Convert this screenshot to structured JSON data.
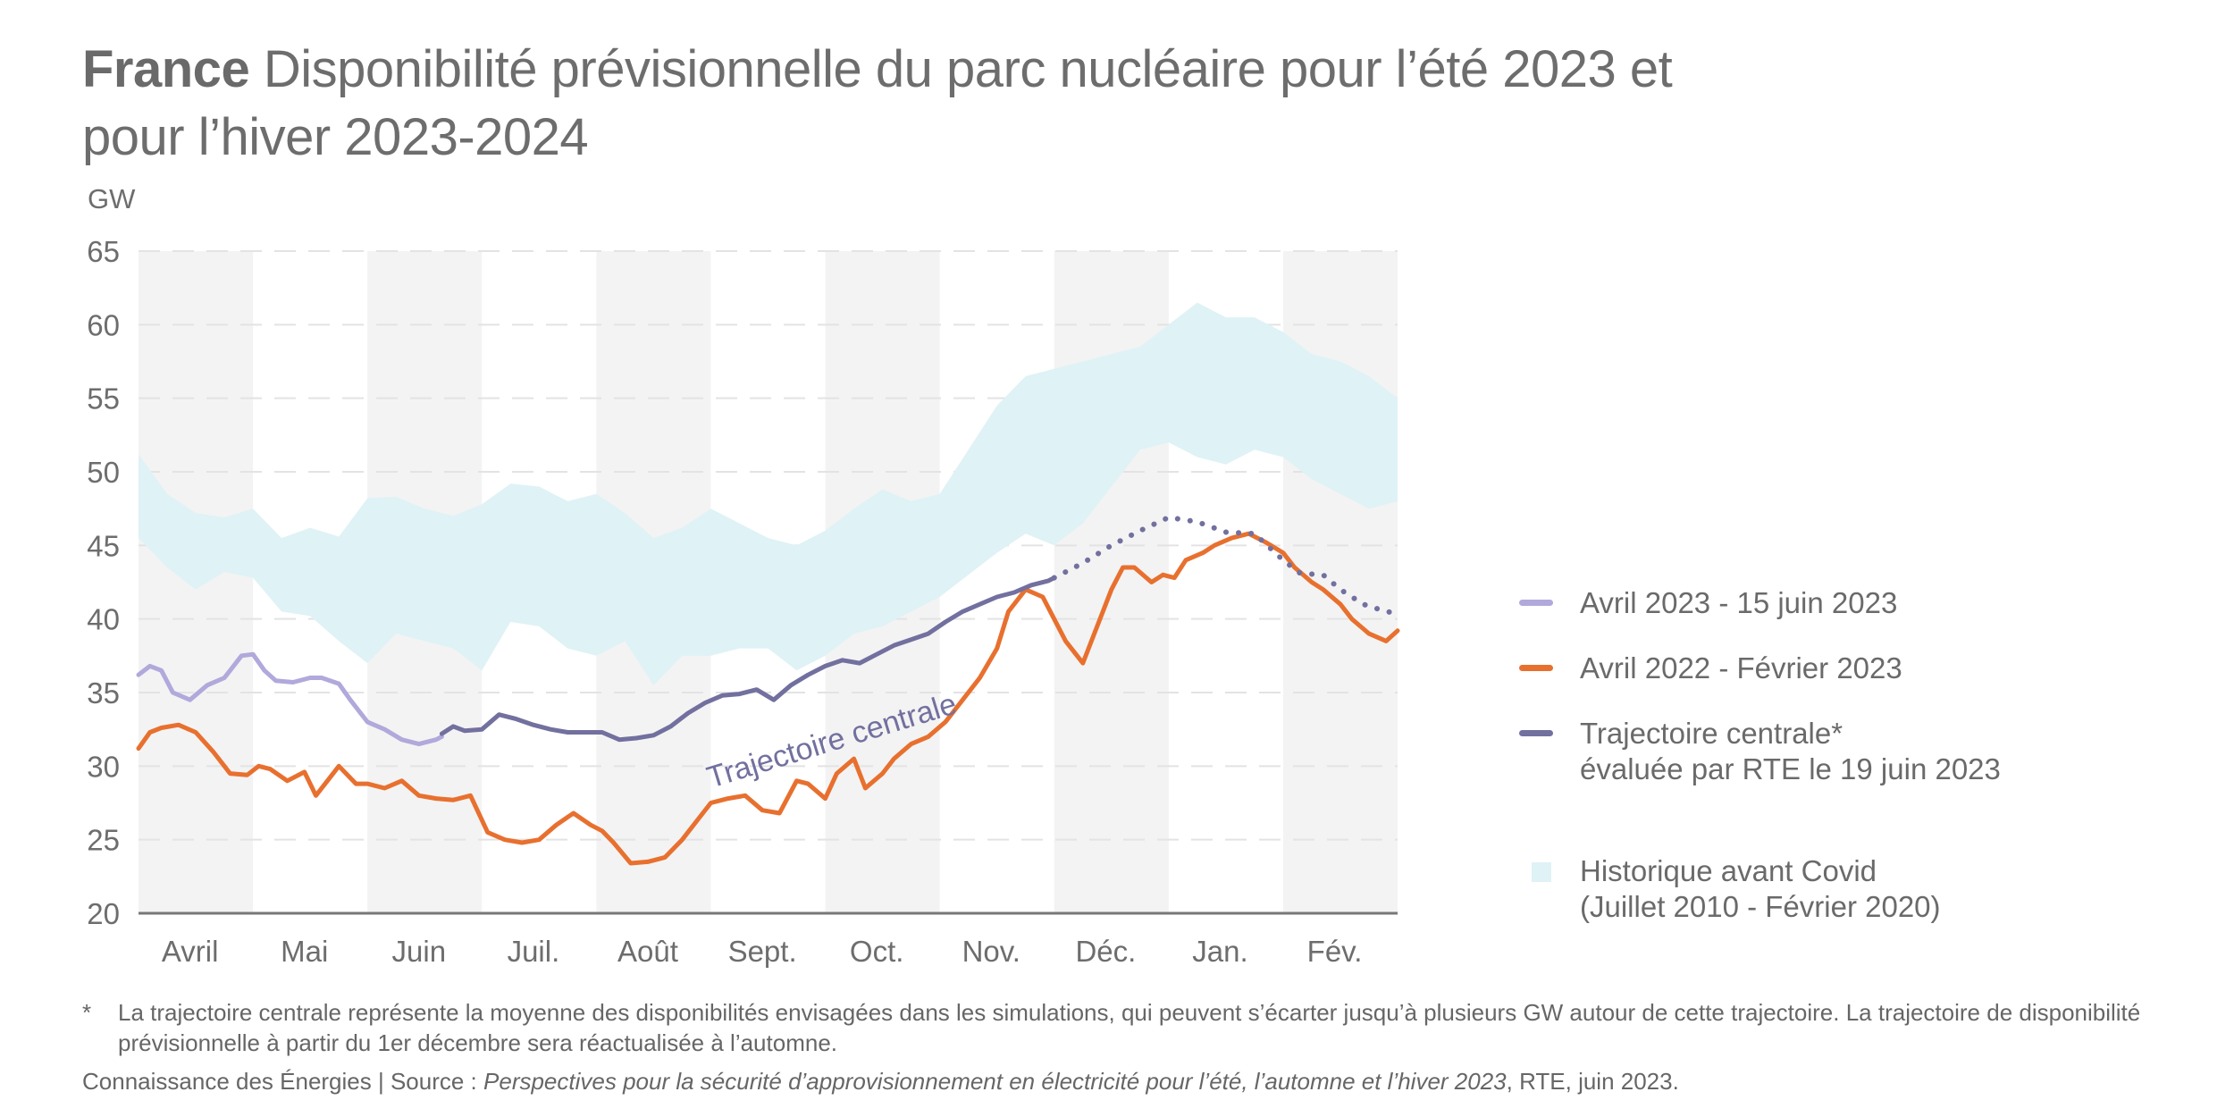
{
  "header": {
    "title_bold": "France",
    "title_rest": "Disponibilité prévisionnelle du parc nucléaire pour l’été 2023 et",
    "title_line2": "pour l’hiver 2023-2024"
  },
  "chart_data": {
    "type": "line",
    "title": "France Disponibilité prévisionnelle du parc nucléaire pour l’été 2023 et pour l’hiver 2023-2024",
    "ylabel": "GW",
    "xlabel": "",
    "ylim": [
      20,
      65
    ],
    "yticks": [
      20,
      25,
      30,
      35,
      40,
      45,
      50,
      55,
      60,
      65
    ],
    "grid": "horizontal dashed",
    "categories": [
      "Avril",
      "Mai",
      "Juin",
      "Juil.",
      "Août",
      "Sept.",
      "Oct.",
      "Nov.",
      "Déc.",
      "Jan.",
      "Fév."
    ],
    "shaded_months": [
      "Avril",
      "Juin",
      "Août",
      "Oct.",
      "Déc.",
      "Fév."
    ],
    "x_unit": "months since start of April (0-11)",
    "band": {
      "name": "Historique avant Covid (Juillet 2010 - Février 2020)",
      "color": "#dff2f6",
      "x": [
        0,
        0.25,
        0.5,
        0.75,
        1,
        1.25,
        1.5,
        1.75,
        2,
        2.25,
        2.5,
        2.75,
        3,
        3.25,
        3.5,
        3.75,
        4,
        4.25,
        4.5,
        4.75,
        5,
        5.25,
        5.5,
        5.75,
        6,
        6.25,
        6.5,
        6.75,
        7,
        7.25,
        7.5,
        7.75,
        8,
        8.25,
        8.5,
        8.75,
        9,
        9.25,
        9.5,
        9.75,
        10,
        10.25,
        10.5,
        10.75,
        11
      ],
      "upper": [
        51.2,
        48.5,
        47.2,
        46.9,
        47.5,
        45.5,
        46.2,
        45.6,
        48.2,
        48.3,
        47.5,
        47.0,
        47.8,
        49.2,
        49.0,
        48.0,
        48.5,
        47.2,
        45.5,
        46.2,
        47.5,
        46.5,
        45.5,
        45.0,
        46.0,
        47.5,
        48.8,
        48.0,
        48.5,
        51.5,
        54.5,
        56.5,
        57.0,
        57.5,
        58.0,
        58.5,
        60.0,
        61.5,
        60.5,
        60.5,
        59.5,
        58.0,
        57.5,
        56.5,
        55.0
      ],
      "lower": [
        45.5,
        43.5,
        42.0,
        43.2,
        42.8,
        40.5,
        40.2,
        38.5,
        37.0,
        39.0,
        38.5,
        38.0,
        36.5,
        39.8,
        39.5,
        38.0,
        37.5,
        38.5,
        35.5,
        37.5,
        37.5,
        38.0,
        38.0,
        36.5,
        37.5,
        39.0,
        39.5,
        40.5,
        41.5,
        43.0,
        44.5,
        45.8,
        45.0,
        46.5,
        49.0,
        51.5,
        52.0,
        51.0,
        50.5,
        51.5,
        51.0,
        49.5,
        48.5,
        47.5,
        48.0
      ]
    },
    "series": [
      {
        "name": "Avril 2023 - 15 juin 2023",
        "color": "#b1a9db",
        "style": "solid",
        "x": [
          0,
          0.1,
          0.2,
          0.3,
          0.45,
          0.6,
          0.75,
          0.9,
          1.0,
          1.1,
          1.2,
          1.35,
          1.5,
          1.6,
          1.75,
          1.85,
          2.0,
          2.15,
          2.3,
          2.45,
          2.6,
          2.65
        ],
        "y": [
          36.2,
          36.8,
          36.5,
          35.0,
          34.5,
          35.5,
          36.0,
          37.5,
          37.6,
          36.5,
          35.8,
          35.7,
          36.0,
          36.0,
          35.6,
          34.5,
          33.0,
          32.5,
          31.8,
          31.5,
          31.8,
          32.0
        ]
      },
      {
        "name": "Avril 2022 - Février 2023",
        "color": "#e8702f",
        "style": "solid",
        "x": [
          0,
          0.1,
          0.2,
          0.35,
          0.5,
          0.65,
          0.8,
          0.95,
          1.05,
          1.15,
          1.3,
          1.45,
          1.55,
          1.65,
          1.75,
          1.9,
          2.0,
          2.15,
          2.3,
          2.45,
          2.6,
          2.75,
          2.9,
          3.05,
          3.2,
          3.35,
          3.5,
          3.65,
          3.8,
          3.95,
          4.05,
          4.15,
          4.3,
          4.45,
          4.6,
          4.75,
          4.9,
          5.0,
          5.15,
          5.3,
          5.45,
          5.6,
          5.75,
          5.85,
          6.0,
          6.1,
          6.25,
          6.35,
          6.5,
          6.6,
          6.75,
          6.9,
          7.05,
          7.2,
          7.35,
          7.5,
          7.6,
          7.75,
          7.9,
          8.0,
          8.1,
          8.25,
          8.35,
          8.5,
          8.6,
          8.7,
          8.85,
          8.95,
          9.05,
          9.15,
          9.3,
          9.4,
          9.55,
          9.7,
          9.85,
          10.0,
          10.1,
          10.25,
          10.35,
          10.5,
          10.6,
          10.75,
          10.9,
          11.0
        ],
        "y": [
          31.2,
          32.3,
          32.6,
          32.8,
          32.3,
          31.0,
          29.5,
          29.4,
          30.0,
          29.8,
          29.0,
          29.6,
          28.0,
          29.0,
          30.0,
          28.8,
          28.8,
          28.5,
          29.0,
          28.0,
          27.8,
          27.7,
          28.0,
          25.5,
          25.0,
          24.8,
          25.0,
          26.0,
          26.8,
          26.0,
          25.6,
          24.8,
          23.4,
          23.5,
          23.8,
          25.0,
          26.5,
          27.5,
          27.8,
          28.0,
          27.0,
          26.8,
          29.0,
          28.8,
          27.8,
          29.5,
          30.5,
          28.5,
          29.5,
          30.5,
          31.5,
          32.0,
          33.0,
          34.5,
          36.0,
          38.0,
          40.5,
          42.0,
          41.5,
          40.0,
          38.5,
          37.0,
          39.0,
          42.0,
          43.5,
          43.5,
          42.5,
          43.0,
          42.8,
          44.0,
          44.5,
          45.0,
          45.5,
          45.8,
          45.2,
          44.5,
          43.5,
          42.5,
          42.0,
          41.0,
          40.0,
          39.0,
          38.5,
          39.2
        ]
      },
      {
        "name": "Trajectoire centrale* évaluée par RTE le 19 juin 2023",
        "color": "#72709f",
        "style": "solid",
        "x": [
          2.65,
          2.75,
          2.85,
          3.0,
          3.15,
          3.3,
          3.45,
          3.6,
          3.75,
          3.9,
          4.05,
          4.2,
          4.35,
          4.5,
          4.65,
          4.8,
          4.95,
          5.1,
          5.25,
          5.4,
          5.55,
          5.7,
          5.85,
          6.0,
          6.15,
          6.3,
          6.45,
          6.6,
          6.75,
          6.9,
          7.05,
          7.2,
          7.35,
          7.5,
          7.65,
          7.8,
          7.95,
          8.0
        ],
        "y": [
          32.2,
          32.7,
          32.4,
          32.5,
          33.5,
          33.2,
          32.8,
          32.5,
          32.3,
          32.3,
          32.3,
          31.8,
          31.9,
          32.1,
          32.7,
          33.6,
          34.3,
          34.8,
          34.9,
          35.2,
          34.5,
          35.5,
          36.2,
          36.8,
          37.2,
          37.0,
          37.6,
          38.2,
          38.6,
          39.0,
          39.8,
          40.5,
          41.0,
          41.5,
          41.8,
          42.3,
          42.6,
          42.8
        ]
      },
      {
        "name": "Trajectoire centrale (prévision)",
        "color": "#72709f",
        "style": "dotted",
        "x": [
          8.0,
          8.25,
          8.5,
          8.75,
          9.0,
          9.25,
          9.5,
          9.75,
          10.0,
          10.15,
          10.35,
          10.5,
          10.7,
          10.9,
          11.0
        ],
        "y": [
          42.8,
          43.8,
          45.0,
          46.0,
          46.9,
          46.6,
          45.9,
          45.8,
          44.0,
          43.1,
          43.0,
          42.0,
          41.0,
          40.5,
          40.4
        ]
      }
    ],
    "annotations": [
      {
        "text": "Trajectoire centrale",
        "near_series": "Trajectoire centrale",
        "position": "below line, Sept.–Oct.",
        "rotated": true
      }
    ],
    "legend_position": "right"
  },
  "legend": {
    "items": [
      {
        "label": "Avril 2023 - 15 juin 2023",
        "color": "#b1a9db",
        "kind": "line"
      },
      {
        "label": "Avril 2022 - Février 2023",
        "color": "#e8702f",
        "kind": "line"
      },
      {
        "label": "Trajectoire centrale*",
        "label2": "évaluée par RTE le 19 juin 2023",
        "color": "#72709f",
        "kind": "line"
      },
      {
        "label": "Historique avant Covid",
        "label2": "(Juillet 2010 - Février 2020)",
        "color": "#dff2f6",
        "kind": "box"
      }
    ]
  },
  "footer": {
    "star": "*",
    "note": "La trajectoire centrale représente la moyenne des disponibilités envisagées dans les simulations, qui peuvent s’écarter jusqu’à plusieurs GW autour de cette trajectoire. La trajectoire de disponibilité prévisionnelle à partir du 1er décembre sera réactualisée à l’automne.",
    "source_prefix": "Connaissance des Énergies | Source : ",
    "source_title": "Perspectives pour la sécurité d’approvisionnement en électricité pour l’été, l’automne et l’hiver 2023",
    "source_suffix": ", RTE, juin 2023."
  }
}
